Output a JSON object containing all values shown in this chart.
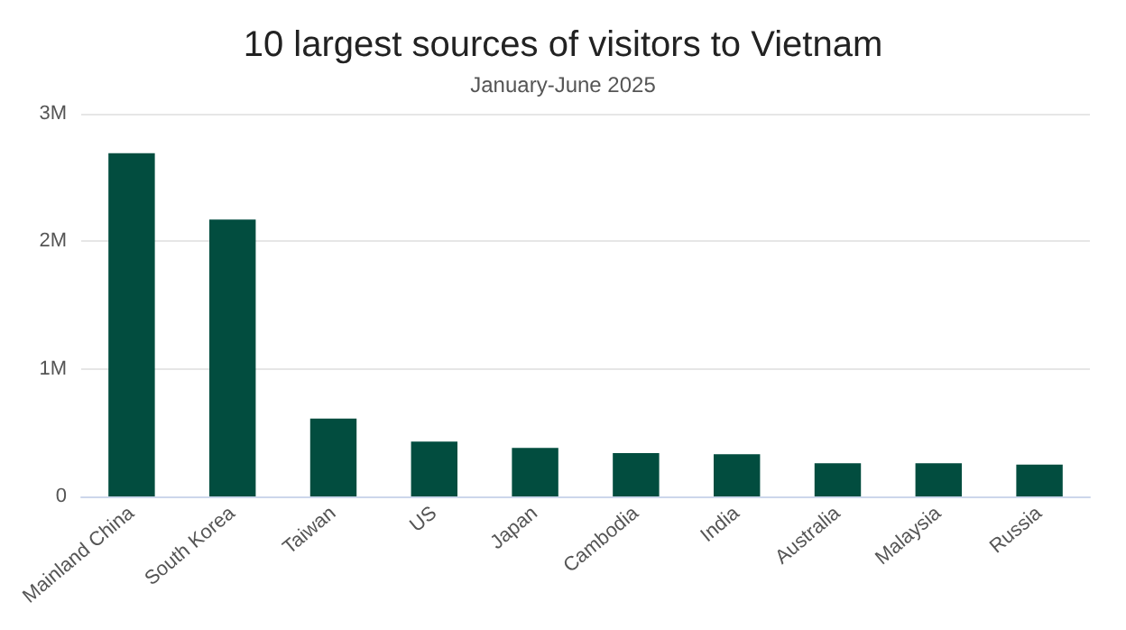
{
  "chart_data": {
    "type": "bar",
    "title": "10 largest sources of visitors to Vietnam",
    "subtitle": "January-June 2025",
    "categories": [
      "Mainland China",
      "South Korea",
      "Taiwan",
      "US",
      "Japan",
      "Cambodia",
      "India",
      "Australia",
      "Malaysia",
      "Russia"
    ],
    "values": [
      2690000,
      2170000,
      610000,
      430000,
      380000,
      340000,
      330000,
      260000,
      260000,
      250000
    ],
    "color": "#024d3f",
    "ylim": [
      0,
      3000000
    ],
    "yticks": [
      0,
      {
        "value": 1000000,
        "label": "1M"
      },
      {
        "value": 2000000,
        "label": "2M"
      },
      {
        "value": 3000000,
        "label": "3M"
      }
    ],
    "grid": "y"
  }
}
